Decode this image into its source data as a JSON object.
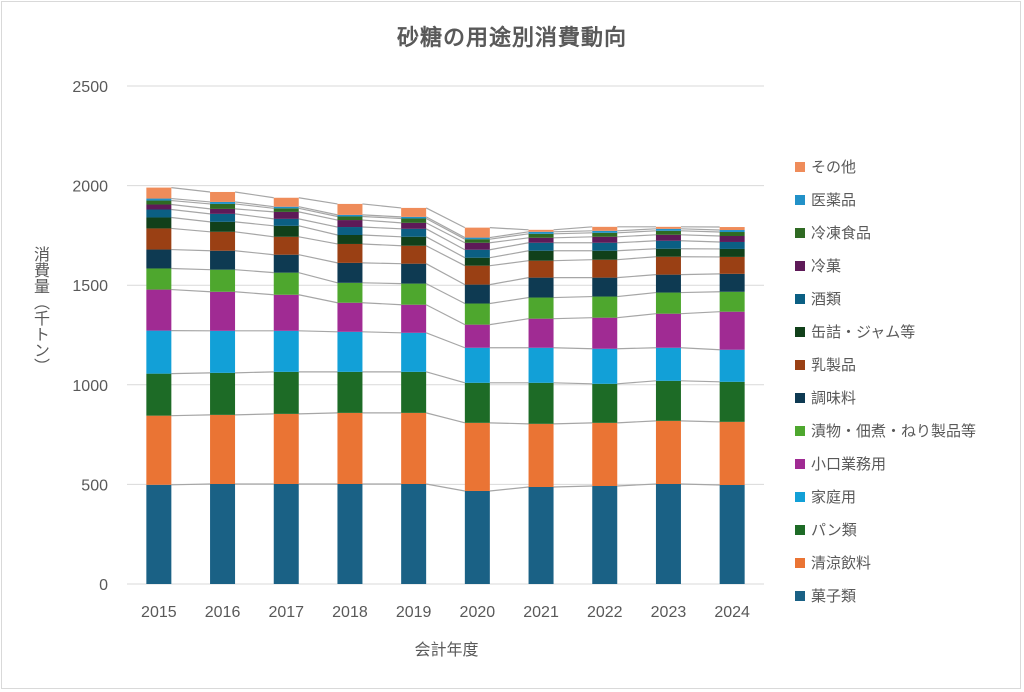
{
  "chart_data": {
    "type": "bar",
    "stacked": true,
    "title": "砂糖の用途別消費動向",
    "xlabel": "会計年度",
    "ylabel": "消費量（千トン）",
    "ylim": [
      0,
      2500
    ],
    "yticks": [
      0,
      500,
      1000,
      1500,
      2000,
      2500
    ],
    "grid": true,
    "series_lines": true,
    "legend_position": "right",
    "categories": [
      "2015",
      "2016",
      "2017",
      "2018",
      "2019",
      "2020",
      "2021",
      "2022",
      "2023",
      "2024"
    ],
    "series": [
      {
        "name": "菓子類",
        "color": "#1a6185",
        "values": [
          498,
          502,
          502,
          502,
          502,
          467,
          487,
          492,
          502,
          497
        ]
      },
      {
        "name": "清涼飲料",
        "color": "#ea7434",
        "values": [
          347,
          347,
          352,
          357,
          357,
          342,
          317,
          317,
          317,
          317
        ]
      },
      {
        "name": "パン類",
        "color": "#1d6b26",
        "values": [
          211,
          211,
          211,
          206,
          206,
          201,
          206,
          196,
          201,
          201
        ]
      },
      {
        "name": "家庭用",
        "color": "#12a0d7",
        "values": [
          216,
          211,
          206,
          201,
          196,
          176,
          176,
          176,
          166,
          161
        ]
      },
      {
        "name": "小口業務用",
        "color": "#a02b93",
        "values": [
          206,
          196,
          181,
          146,
          141,
          116,
          146,
          156,
          171,
          191
        ]
      },
      {
        "name": "漬物・佃煮・ねり製品等",
        "color": "#4ea72e",
        "values": [
          106,
          111,
          111,
          100,
          106,
          106,
          106,
          106,
          106,
          100
        ]
      },
      {
        "name": "調味料",
        "color": "#0e3a52",
        "values": [
          95,
          95,
          90,
          100,
          100,
          95,
          100,
          95,
          90,
          90
        ]
      },
      {
        "name": "乳製品",
        "color": "#9a4014",
        "values": [
          106,
          95,
          90,
          95,
          90,
          95,
          85,
          90,
          90,
          85
        ]
      },
      {
        "name": "缶詰・ジャム等",
        "color": "#11401a",
        "values": [
          55,
          50,
          55,
          45,
          45,
          40,
          50,
          45,
          40,
          40
        ]
      },
      {
        "name": "酒類",
        "color": "#0b5f83",
        "values": [
          40,
          40,
          35,
          40,
          40,
          40,
          40,
          40,
          40,
          35
        ]
      },
      {
        "name": "冷菓",
        "color": "#5e1a58",
        "values": [
          25,
          25,
          35,
          35,
          30,
          35,
          25,
          30,
          30,
          30
        ]
      },
      {
        "name": "冷凍食品",
        "color": "#2f6a23",
        "values": [
          20,
          25,
          18,
          18,
          22,
          18,
          20,
          20,
          20,
          20
        ]
      },
      {
        "name": "医薬品",
        "color": "#2291c8",
        "values": [
          10,
          10,
          8,
          8,
          8,
          8,
          10,
          10,
          10,
          10
        ]
      },
      {
        "name": "その他",
        "color": "#ef8c5a",
        "values": [
          55,
          50,
          45,
          55,
          45,
          50,
          10,
          20,
          10,
          15
        ]
      }
    ]
  }
}
